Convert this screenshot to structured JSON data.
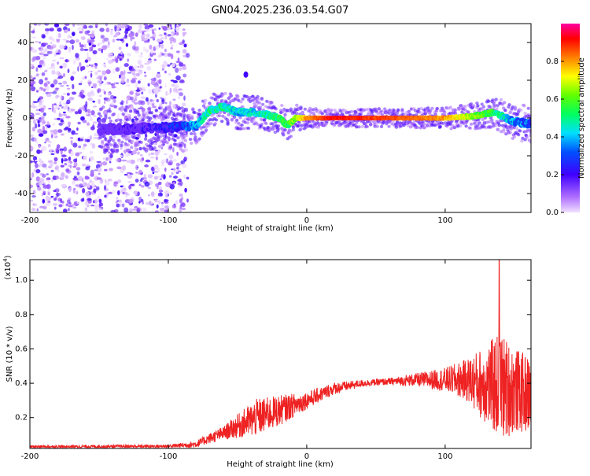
{
  "chart_data": [
    {
      "type": "heatmap",
      "title": "GN04.2025.236.03.54.G07",
      "xlabel": "Height of straight line (km)",
      "ylabel": "Frequency (Hz)",
      "xlim": [
        -200,
        162
      ],
      "ylim": [
        -50,
        50
      ],
      "x_ticks": [
        -200,
        -100,
        0,
        100
      ],
      "y_ticks": [
        -40,
        -20,
        0,
        20,
        40
      ],
      "x_tick_labels": [
        "-200",
        "-100",
        "0",
        "100"
      ],
      "y_tick_labels": [
        "-40",
        "-20",
        "0",
        "20",
        "40"
      ],
      "colorbar": {
        "label": "Normalized spectral amplitude",
        "range": [
          0,
          1
        ],
        "ticks": [
          0,
          0.2,
          0.4,
          0.6,
          0.8
        ],
        "tick_labels": [
          "0.0",
          "0.2",
          "0.4",
          "0.6",
          "0.8"
        ],
        "colors": [
          "#d9b8ff",
          "#8000ff",
          "#0000ff",
          "#00c0ff",
          "#00ff80",
          "#40ff00",
          "#ffff00",
          "#ff8000",
          "#ff0000",
          "#ff00a0"
        ]
      },
      "noise_region_x": [
        -200,
        -86
      ],
      "ridge": [
        {
          "x": -140,
          "f": -6,
          "a": 0.18
        },
        {
          "x": -100,
          "f": -5,
          "a": 0.3
        },
        {
          "x": -80,
          "f": -4,
          "a": 0.45
        },
        {
          "x": -70,
          "f": 4,
          "a": 0.55
        },
        {
          "x": -60,
          "f": 6,
          "a": 0.55
        },
        {
          "x": -50,
          "f": 3,
          "a": 0.5
        },
        {
          "x": -40,
          "f": 3,
          "a": 0.5
        },
        {
          "x": -30,
          "f": 2,
          "a": 0.55
        },
        {
          "x": -20,
          "f": 0,
          "a": 0.6
        },
        {
          "x": -14,
          "f": -4,
          "a": 0.6
        },
        {
          "x": -8,
          "f": 0,
          "a": 0.7
        },
        {
          "x": 0,
          "f": 0,
          "a": 0.85
        },
        {
          "x": 20,
          "f": 0,
          "a": 0.95
        },
        {
          "x": 60,
          "f": 0,
          "a": 0.9
        },
        {
          "x": 100,
          "f": 0,
          "a": 0.85
        },
        {
          "x": 120,
          "f": 1,
          "a": 0.7
        },
        {
          "x": 135,
          "f": 3,
          "a": 0.6
        },
        {
          "x": 150,
          "f": -2,
          "a": 0.45
        },
        {
          "x": 162,
          "f": -3,
          "a": 0.4
        }
      ]
    },
    {
      "type": "line",
      "xlabel": "Height of straight line (km)",
      "ylabel": "SNR (10 * v/v)",
      "scale_label": "(x10",
      "scale_exp": "4",
      "scale_close": ")",
      "xlim": [
        -200,
        162
      ],
      "ylim": [
        0.02,
        1.12
      ],
      "x_ticks": [
        -200,
        -100,
        0,
        100
      ],
      "y_ticks": [
        0.2,
        0.4,
        0.6,
        0.8,
        1.0
      ],
      "x_tick_labels": [
        "-200",
        "-100",
        "0",
        "100"
      ],
      "y_tick_labels": [
        "0.2",
        "0.4",
        "0.6",
        "0.8",
        "1.0"
      ],
      "color": "#ee2222",
      "envelope": [
        {
          "x": -200,
          "mean": 0.03,
          "amp": 0.008
        },
        {
          "x": -100,
          "mean": 0.033,
          "amp": 0.01
        },
        {
          "x": -80,
          "mean": 0.045,
          "amp": 0.02
        },
        {
          "x": -70,
          "mean": 0.08,
          "amp": 0.03
        },
        {
          "x": -60,
          "mean": 0.11,
          "amp": 0.04
        },
        {
          "x": -50,
          "mean": 0.15,
          "amp": 0.07
        },
        {
          "x": -36,
          "mean": 0.2,
          "amp": 0.11
        },
        {
          "x": -20,
          "mean": 0.24,
          "amp": 0.09
        },
        {
          "x": 0,
          "mean": 0.3,
          "amp": 0.05
        },
        {
          "x": 20,
          "mean": 0.37,
          "amp": 0.035
        },
        {
          "x": 40,
          "mean": 0.4,
          "amp": 0.02
        },
        {
          "x": 60,
          "mean": 0.41,
          "amp": 0.02
        },
        {
          "x": 80,
          "mean": 0.42,
          "amp": 0.04
        },
        {
          "x": 100,
          "mean": 0.42,
          "amp": 0.07
        },
        {
          "x": 115,
          "mean": 0.42,
          "amp": 0.12
        },
        {
          "x": 125,
          "mean": 0.4,
          "amp": 0.2
        },
        {
          "x": 140,
          "mean": 0.38,
          "amp": 0.32
        },
        {
          "x": 150,
          "mean": 0.36,
          "amp": 0.25
        },
        {
          "x": 162,
          "mean": 0.33,
          "amp": 0.22
        }
      ],
      "peak": {
        "x": 139,
        "y": 1.12
      }
    }
  ]
}
